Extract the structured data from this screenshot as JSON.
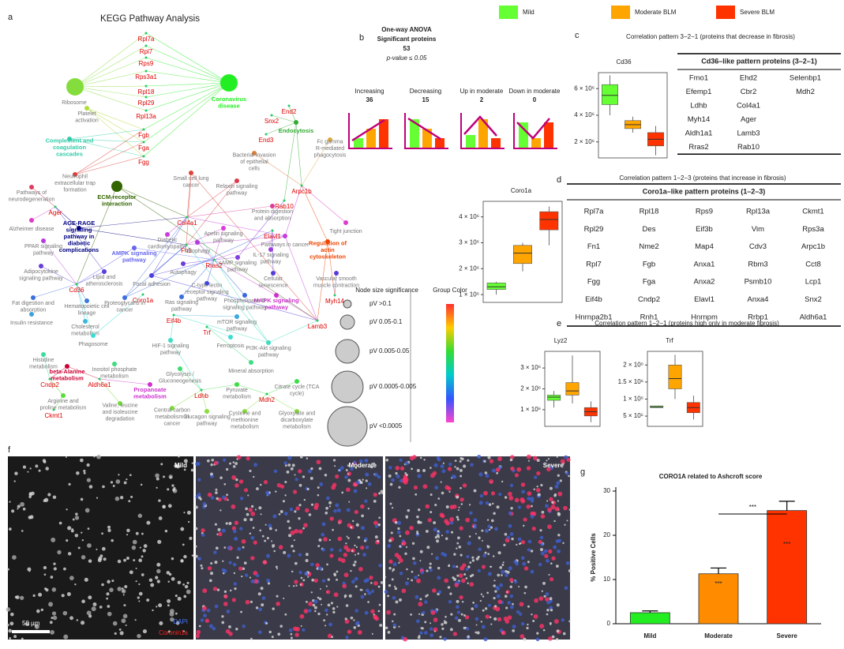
{
  "legend": [
    {
      "name": "Mild",
      "color": "#66ff33"
    },
    {
      "name": "Moderate BLM",
      "color": "#ffa500"
    },
    {
      "name": "Severe BLM",
      "color": "#ff3300"
    }
  ],
  "letters": [
    "a",
    "b",
    "c",
    "d",
    "e",
    "f",
    "g"
  ],
  "network": {
    "title": "KEGG Pathway Analysis",
    "nodes": [
      {
        "label": "Rpl7a"
      },
      {
        "label": "Rpl7"
      },
      {
        "label": "Rps9"
      },
      {
        "label": "Rps3a1"
      },
      {
        "label": "Rpl18"
      },
      {
        "label": "Rpl29"
      },
      {
        "label": "Rpl13a"
      },
      {
        "label": "Fgb"
      },
      {
        "label": "Fga"
      },
      {
        "label": "Fgg"
      },
      {
        "label": "End2"
      },
      {
        "label": "Snx2"
      },
      {
        "label": "End3"
      },
      {
        "label": "Arpc1b"
      },
      {
        "label": "Rab10"
      },
      {
        "label": "Ager"
      },
      {
        "label": "Col4a1"
      },
      {
        "label": "Fn1"
      },
      {
        "label": "Rras2"
      },
      {
        "label": "Elavl1"
      },
      {
        "label": "Cd36"
      },
      {
        "label": "Coro1a"
      },
      {
        "label": "Eif4b"
      },
      {
        "label": "Trf"
      },
      {
        "label": "Myh14"
      },
      {
        "label": "Lamb3"
      },
      {
        "label": "Cndp2"
      },
      {
        "label": "Aldh6a1"
      },
      {
        "label": "Ckmt1"
      },
      {
        "label": "Ldhb"
      },
      {
        "label": "Mdh2"
      },
      {
        "label": "Coronavirus disease",
        "color": "#22ee22"
      },
      {
        "label": "Complement and coagulation cascades",
        "color": "#33ccaa"
      },
      {
        "label": "ECM-receptor interaction",
        "color": "#336600"
      },
      {
        "label": "AGE-RAGE signaling pathway in diabetic complications",
        "color": "#000080"
      },
      {
        "label": "AMPK signaling pathway",
        "color": "#6666ee"
      },
      {
        "label": "Endocytosis",
        "color": "#33aa33"
      },
      {
        "label": "Regulation of actin cytoskeleton",
        "color": "#ee4400"
      },
      {
        "label": "MAPK signaling pathway",
        "color": "#cc33cc"
      },
      {
        "label": "beta-Alanine metabolism",
        "color": "#cc0033"
      },
      {
        "label": "Propanoate metabolism",
        "color": "#cc33cc"
      },
      {
        "label": "Ribosome"
      },
      {
        "label": "Platelet activation"
      },
      {
        "label": "Neutrophil extracellular trap formation"
      },
      {
        "label": "Pathways of neurodegeneration"
      },
      {
        "label": "Alzheimer disease"
      },
      {
        "label": "PPAR signaling pathway"
      },
      {
        "label": "Adipocytokine signaling pathway"
      },
      {
        "label": "Fat digestion and absorption"
      },
      {
        "label": "Insulin resistance"
      },
      {
        "label": "Hematopoietic cell lineage"
      },
      {
        "label": "Cholesterol metabolism"
      },
      {
        "label": "Small cell lung cancer"
      },
      {
        "label": "Relaxin signaling pathway"
      },
      {
        "label": "Bacterial invasion of epithelial cells"
      },
      {
        "label": "Fc gamma R-mediated phagocytosis"
      },
      {
        "label": "Tight junction"
      },
      {
        "label": "Protein digestion and absorption"
      },
      {
        "label": "Pathways in cancer"
      },
      {
        "label": "Diabetic cardiomyopathy"
      },
      {
        "label": "Apelin signaling pathway"
      },
      {
        "label": "IL-17 signaling pathway"
      },
      {
        "label": "Mitophagy"
      },
      {
        "label": "cAMP signaling pathway"
      },
      {
        "label": "Autophagy"
      },
      {
        "label": "Cellular senescence"
      },
      {
        "label": "Lipid and atherosclerosis"
      },
      {
        "label": "C-type lectin receptor signaling pathway"
      },
      {
        "label": "Focal adhesion"
      },
      {
        "label": "Proteoglycans in cancer"
      },
      {
        "label": "Ras signaling pathway"
      },
      {
        "label": "Phospholipase D signaling pathway"
      },
      {
        "label": "Vascular smooth muscle contraction"
      },
      {
        "label": "mTOR signaling pathway"
      },
      {
        "label": "Phagosome"
      },
      {
        "label": "HIF-1 signaling pathway"
      },
      {
        "label": "Ferroptosis"
      },
      {
        "label": "PI3K-Akt signaling pathway"
      },
      {
        "label": "Inositol phosphate metabolism"
      },
      {
        "label": "Histidine metabolism"
      },
      {
        "label": "Glycolysis / Gluconeogenesis"
      },
      {
        "label": "Mineral absorption"
      },
      {
        "label": "Pyruvate metabolism"
      },
      {
        "label": "Citrate cycle (TCA cycle)"
      },
      {
        "label": "Arginine and proline metabolism"
      },
      {
        "label": "Valine, leucine and isoleucine degradation"
      },
      {
        "label": "Central carbon metabolism in cancer"
      },
      {
        "label": "Glucagon signaling pathway"
      },
      {
        "label": "Cysteine and methionine metabolism"
      },
      {
        "label": "Glyoxylate and dicarboxylate metabolism"
      }
    ],
    "size_legend": {
      "title": "Node size significance",
      "items": [
        "pV >0.1",
        "pV 0.05-0.1",
        "pV 0.005-0.05",
        "pV 0.0005-0.005",
        "pV <0.0005"
      ]
    },
    "color_legend": "Group Color"
  },
  "anova": {
    "lines": [
      "One-way ANOVA",
      "Significant proteins",
      "53",
      "p-value ≤ 0.05"
    ],
    "groups": [
      {
        "name": "Increasing",
        "count": 36
      },
      {
        "name": "Decreasing",
        "count": 15
      },
      {
        "name": "Up in moderate",
        "count": 2
      },
      {
        "name": "Down in moderate",
        "count": 0
      }
    ]
  },
  "titles": {
    "c": "Correlation pattern 3−2−1 (proteins that decrease in fibrosis)",
    "d": "Correlation pattern 1−2−3 (proteins that increase in fibrosis)",
    "e": "Correlation pattern 1−2−1 (proteins high only in moderate fibrosis)"
  },
  "table_c": {
    "header": "Cd36–like pattern proteins (3–2–1)",
    "rows": [
      [
        "Fmo1",
        "Ehd2",
        "Selenbp1"
      ],
      [
        "Efemp1",
        "Cbr2",
        "Mdh2"
      ],
      [
        "Ldhb",
        "Col4a1"
      ],
      [
        "Myh14",
        "Ager"
      ],
      [
        "Aldh1a1",
        "Lamb3"
      ],
      [
        "Rras2",
        "Rab10"
      ]
    ]
  },
  "table_d": {
    "header": "Coro1a–like pattern proteins (1–2–3)",
    "rows": [
      [
        "Rpl7a",
        "Rpl18",
        "Rps9",
        "Rpl13a",
        "Ckmt1"
      ],
      [
        "Rpl29",
        "Des",
        "Eif3b",
        "Vim",
        "Rps3a"
      ],
      [
        "Fn1",
        "Nme2",
        "Map4",
        "Cdv3",
        "Arpc1b"
      ],
      [
        "Rpl7",
        "Fgb",
        "Anxa1",
        "Rbm3",
        "Cct8"
      ],
      [
        "Fgg",
        "Fga",
        "Anxa2",
        "Psmb10",
        "Lcp1"
      ],
      [
        "Eif4b",
        "Cndp2",
        "Elavl1",
        "Anxa4",
        "Snx2"
      ],
      [
        "Hnrnpa2b1",
        "Rnh1",
        "Hnrnpm",
        "Rrbp1",
        "Aldh6a1"
      ]
    ]
  },
  "boxplots": [
    {
      "name": "Cd36",
      "ylim": [
        800000,
        7200000
      ],
      "yticks": [
        {
          "value": 2000000,
          "label": "2 × 10⁶"
        },
        {
          "value": 4000000,
          "label": "4 × 10⁶"
        },
        {
          "value": 6000000,
          "label": "6 × 10⁶"
        }
      ],
      "boxes": [
        {
          "min": 4000000,
          "q1": 4800000,
          "median": 5500000,
          "q3": 6300000,
          "max": 7000000
        },
        {
          "min": 2700000,
          "q1": 3000000,
          "median": 3300000,
          "q3": 3600000,
          "max": 3900000
        },
        {
          "min": 1000000,
          "q1": 1700000,
          "median": 2200000,
          "q3": 2700000,
          "max": 3200000
        }
      ]
    },
    {
      "name": "Coro1a",
      "ylim": [
        700000,
        4600000
      ],
      "yticks": [
        {
          "value": 1000000,
          "label": "1 × 10⁶"
        },
        {
          "value": 2000000,
          "label": "2 × 10⁶"
        },
        {
          "value": 3000000,
          "label": "3 × 10⁶"
        },
        {
          "value": 4000000,
          "label": "4 × 10⁶"
        }
      ],
      "boxes": [
        {
          "min": 1000000,
          "q1": 1200000,
          "median": 1300000,
          "q3": 1450000,
          "max": 1500000
        },
        {
          "min": 1900000,
          "q1": 2200000,
          "median": 2600000,
          "q3": 2900000,
          "max": 3000000
        },
        {
          "min": 2900000,
          "q1": 3500000,
          "median": 3900000,
          "q3": 4200000,
          "max": 4400000
        }
      ]
    },
    {
      "name": "Lyz2",
      "ylim": [
        200000,
        3800000
      ],
      "yticks": [
        {
          "value": 1000000,
          "label": "1 × 10⁶"
        },
        {
          "value": 2000000,
          "label": "2 × 10⁶"
        },
        {
          "value": 3000000,
          "label": "3 × 10⁶"
        }
      ],
      "boxes": [
        {
          "min": 1100000,
          "q1": 1450000,
          "median": 1600000,
          "q3": 1700000,
          "max": 1900000
        },
        {
          "min": 1300000,
          "q1": 1700000,
          "median": 1900000,
          "q3": 2300000,
          "max": 3600000
        },
        {
          "min": 400000,
          "q1": 700000,
          "median": 900000,
          "q3": 1100000,
          "max": 1400000
        }
      ]
    },
    {
      "name": "Trf",
      "ylim": [
        200000,
        2400000
      ],
      "yticks": [
        {
          "value": 500000,
          "label": "5 × 10⁵"
        },
        {
          "value": 1000000,
          "label": "1 × 10⁶"
        },
        {
          "value": 1500000,
          "label": "1.5 × 10⁶"
        },
        {
          "value": 2000000,
          "label": "2 × 10⁶"
        }
      ],
      "boxes": [
        {
          "min": 750000,
          "q1": 750000,
          "median": 770000,
          "q3": 800000,
          "max": 800000
        },
        {
          "min": 1000000,
          "q1": 1300000,
          "median": 1600000,
          "q3": 2000000,
          "max": 2300000
        },
        {
          "min": 400000,
          "q1": 600000,
          "median": 750000,
          "q3": 900000,
          "max": 1100000
        }
      ]
    }
  ],
  "images": {
    "panels": [
      "Mild",
      "Moderate",
      "Severe"
    ],
    "stains": [
      "DAPI",
      "Coronin1a"
    ],
    "scale": "50 µm"
  },
  "chart_data": {
    "type": "bar",
    "title": "CORO1A related to Ashcroft score",
    "ylabel": "% Positive Cells",
    "categories": [
      "Mild",
      "Moderate",
      "Severe"
    ],
    "values": [
      2.5,
      11.3,
      25.6
    ],
    "errors": [
      0.4,
      1.3,
      2.1
    ],
    "colors": [
      "#22ee22",
      "#ff8c00",
      "#ff3300"
    ],
    "ylim": [
      0,
      30
    ],
    "yticks": [
      0,
      10,
      20,
      30
    ],
    "annotations": [
      "***",
      "***",
      "***"
    ]
  }
}
